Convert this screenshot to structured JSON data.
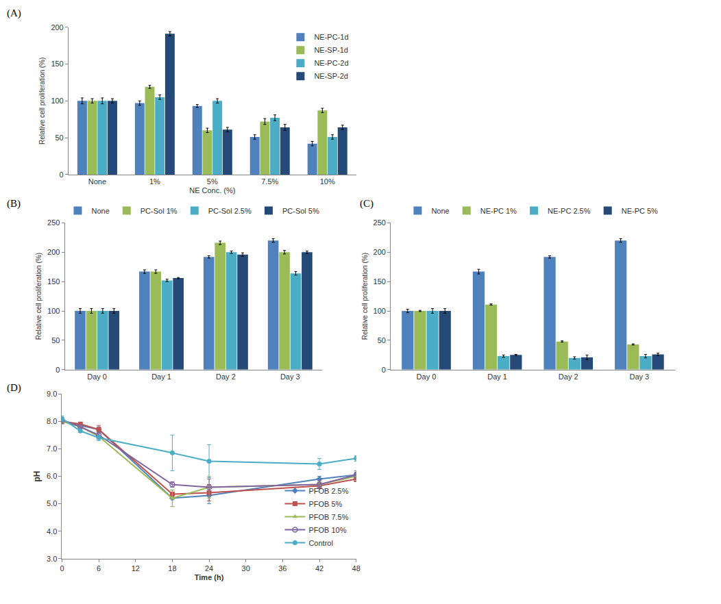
{
  "chart_data": [
    {
      "type": "bar",
      "title": "(A)",
      "xlabel": "NE Conc. (%)",
      "ylabel": "Relative cell proliferation (%)",
      "categories": [
        "None",
        "1%",
        "5%",
        "7.5%",
        "10%"
      ],
      "series": [
        {
          "name": "NE-PC-1d",
          "color": "#4F81BD",
          "values": [
            100,
            97,
            93,
            51,
            42
          ],
          "errors": [
            4,
            3,
            2,
            3,
            3
          ]
        },
        {
          "name": "NE-SP-1d",
          "color": "#9BBB59",
          "values": [
            100,
            119,
            60,
            72,
            87
          ],
          "errors": [
            3,
            2,
            3,
            4,
            3
          ]
        },
        {
          "name": "NE-PC-2d",
          "color": "#4BACC6",
          "values": [
            100,
            105,
            100,
            77,
            51
          ],
          "errors": [
            4,
            3,
            3,
            4,
            3
          ]
        },
        {
          "name": "NE-SP-2d",
          "color": "#254A78",
          "values": [
            100,
            191,
            61,
            64,
            64
          ],
          "errors": [
            3,
            3,
            3,
            4,
            3
          ]
        }
      ],
      "ylim": [
        0,
        200
      ],
      "yticks": [
        0,
        50,
        100,
        150,
        200
      ],
      "grid": false,
      "legend": "top-right"
    },
    {
      "type": "bar",
      "title": "(B)",
      "ylabel": "Relative cell proliferation (%)",
      "categories": [
        "Day 0",
        "Day 1",
        "Day 2",
        "Day 3"
      ],
      "series": [
        {
          "name": "None",
          "color": "#4F81BD",
          "values": [
            100,
            167,
            192,
            220
          ],
          "errors": [
            4,
            3,
            2,
            3
          ]
        },
        {
          "name": "PC-Sol 1%",
          "color": "#9BBB59",
          "values": [
            100,
            167,
            216,
            200
          ],
          "errors": [
            4,
            3,
            3,
            3
          ]
        },
        {
          "name": "PC-Sol 2.5%",
          "color": "#4BACC6",
          "values": [
            100,
            152,
            200,
            164
          ],
          "errors": [
            4,
            2,
            2,
            3
          ]
        },
        {
          "name": "PC-Sol 5%",
          "color": "#254A78",
          "values": [
            100,
            156,
            196,
            200
          ],
          "errors": [
            4,
            1,
            3,
            2
          ]
        }
      ],
      "ylim": [
        0,
        250
      ],
      "yticks": [
        0,
        50,
        100,
        150,
        200,
        250
      ],
      "grid": false,
      "legend": "top"
    },
    {
      "type": "bar",
      "title": "(C)",
      "ylabel": "Relative cell proliferation (%)",
      "categories": [
        "Day 0",
        "Day 1",
        "Day 2",
        "Day 3"
      ],
      "series": [
        {
          "name": "None",
          "color": "#4F81BD",
          "values": [
            100,
            167,
            192,
            220
          ],
          "errors": [
            3,
            4,
            2,
            3
          ]
        },
        {
          "name": "NE-PC 1%",
          "color": "#9BBB59",
          "values": [
            100,
            111,
            48,
            43
          ],
          "errors": [
            1,
            1,
            1,
            1
          ]
        },
        {
          "name": "NE-PC 2.5%",
          "color": "#4BACC6",
          "values": [
            100,
            23,
            20,
            23
          ],
          "errors": [
            4,
            2,
            2,
            3
          ]
        },
        {
          "name": "NE-PC 5%",
          "color": "#254A78",
          "values": [
            100,
            25,
            21,
            26
          ],
          "errors": [
            4,
            1,
            4,
            2
          ]
        }
      ],
      "ylim": [
        0,
        250
      ],
      "yticks": [
        0,
        50,
        100,
        150,
        200,
        250
      ],
      "grid": false,
      "legend": "top"
    },
    {
      "type": "line",
      "title": "(D)",
      "xlabel": "Time (h)",
      "ylabel": "pH",
      "x": [
        0,
        3,
        6,
        18,
        24,
        42,
        48
      ],
      "series": [
        {
          "name": "PFOB 2.5%",
          "color": "#4F81BD",
          "marker": "diamond",
          "values": [
            8.0,
            7.85,
            7.7,
            5.2,
            5.3,
            5.9,
            6.05
          ],
          "errors": [
            0.1,
            0.05,
            0.1,
            0.3,
            0.3,
            0.1,
            0.1
          ]
        },
        {
          "name": "PFOB 5%",
          "color": "#C0504D",
          "marker": "square",
          "values": [
            8.0,
            7.9,
            7.7,
            5.35,
            5.4,
            5.65,
            5.9
          ],
          "errors": [
            0.05,
            0.05,
            0.15,
            0.15,
            0.3,
            0.1,
            0.1
          ]
        },
        {
          "name": "PFOB 7.5%",
          "color": "#9BBB59",
          "marker": "triangle-up",
          "values": [
            8.0,
            7.8,
            7.45,
            5.2,
            5.6,
            5.7,
            6.0
          ],
          "errors": [
            0.05,
            0.05,
            0.1,
            0.3,
            0.4,
            0.1,
            0.15
          ]
        },
        {
          "name": "PFOB 10%",
          "color": "#8064A2",
          "marker": "circle-open",
          "values": [
            8.05,
            7.8,
            7.5,
            5.7,
            5.6,
            5.7,
            6.05
          ],
          "errors": [
            0.05,
            0.05,
            0.1,
            0.1,
            0.3,
            0.15,
            0.15
          ]
        },
        {
          "name": "Control",
          "color": "#4BACC6",
          "marker": "circle",
          "values": [
            8.1,
            7.65,
            7.4,
            6.85,
            6.55,
            6.45,
            6.65
          ],
          "errors": [
            0.1,
            0.05,
            0.1,
            0.65,
            0.6,
            0.2,
            0.1
          ]
        }
      ],
      "xlim": [
        0,
        48
      ],
      "xticks": [
        0,
        6,
        12,
        18,
        24,
        30,
        36,
        42,
        48
      ],
      "ylim": [
        3,
        9
      ],
      "yticks": [
        {
          "value": 3,
          "label": "3.0"
        },
        {
          "value": 4,
          "label": "4.0"
        },
        {
          "value": 5,
          "label": "5.0"
        },
        {
          "value": 6,
          "label": "6.0"
        },
        {
          "value": 7,
          "label": "7.0"
        },
        {
          "value": 8,
          "label": "8.0"
        },
        {
          "value": 9,
          "label": "9.0"
        }
      ],
      "grid": false,
      "legend": "bottom-right"
    }
  ]
}
